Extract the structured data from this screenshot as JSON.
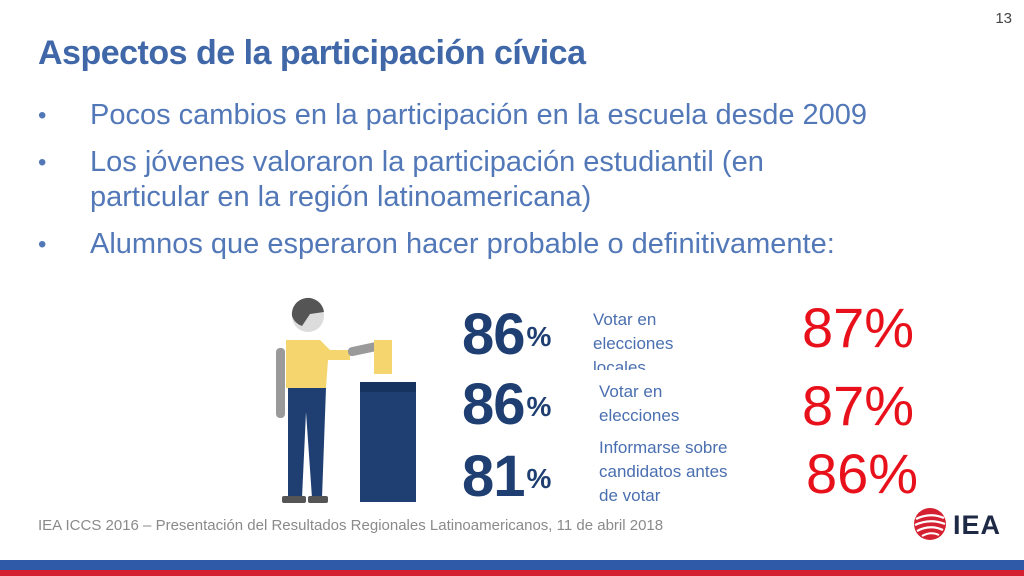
{
  "slide": {
    "number": "13"
  },
  "title": "Aspectos de la participación cívica",
  "bullets": [
    {
      "line1": "Pocos cambios en la participación en la escuela desde 2009"
    },
    {
      "line1": "Los jóvenes valoraron la participación estudiantil (en",
      "line2": "particular en la región latinoamericana)"
    },
    {
      "line1": "Alumnos que esperaron hacer probable o definitivamente:"
    }
  ],
  "bullet_glyph": "•",
  "stats": [
    {
      "value": "86",
      "unit": "%",
      "label_lines": [
        "Votar en",
        "elecciones",
        "locales"
      ],
      "regional": "87%"
    },
    {
      "value": "86",
      "unit": "%",
      "label_lines": [
        "Votar en",
        "elecciones"
      ],
      "regional": "87%"
    },
    {
      "value": "81",
      "unit": "%",
      "label_lines": [
        "Informarse sobre",
        "candidatos antes",
        "de votar"
      ],
      "regional": "86%"
    }
  ],
  "figure": {
    "icon": "voter-ballot-box-icon"
  },
  "footer": "IEA ICCS 2016 – Presentación del Resultados Regionales Latinoamericanos, 11 de abril 2018",
  "logo": {
    "text": "IEA",
    "icon": "globe-icon"
  },
  "colors": {
    "title": "#4068a8",
    "bullet_text": "#5378b8",
    "stat_number": "#1f3f73",
    "regional_value": "#e8111b",
    "bar_blue": "#2e5aa8",
    "bar_red": "#d42030",
    "figure_shirt": "#f5d56e",
    "figure_navy": "#1f3f73",
    "figure_gray": "#9a9a9a"
  }
}
